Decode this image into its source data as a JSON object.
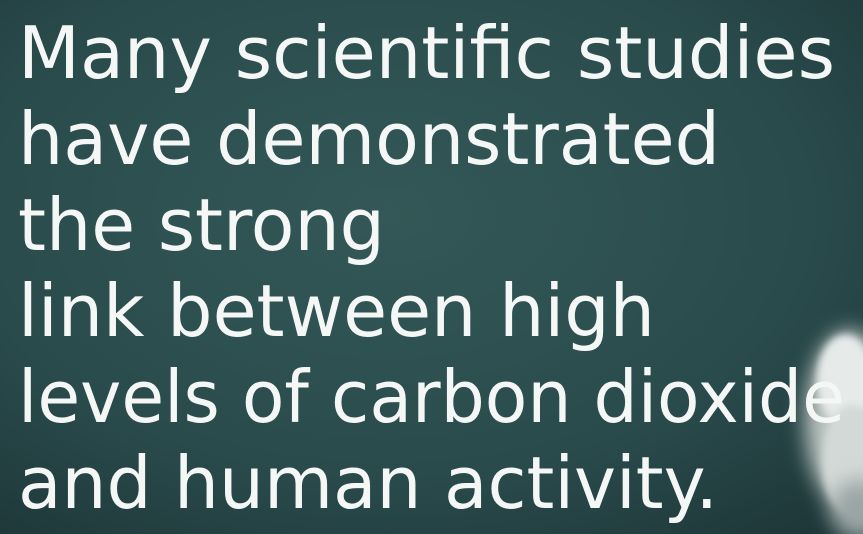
{
  "text": {
    "lines": [
      "Many scientific studies",
      "have demonstrated",
      "the strong",
      "link between high",
      "levels of carbon dioxide",
      "and human activity."
    ]
  }
}
